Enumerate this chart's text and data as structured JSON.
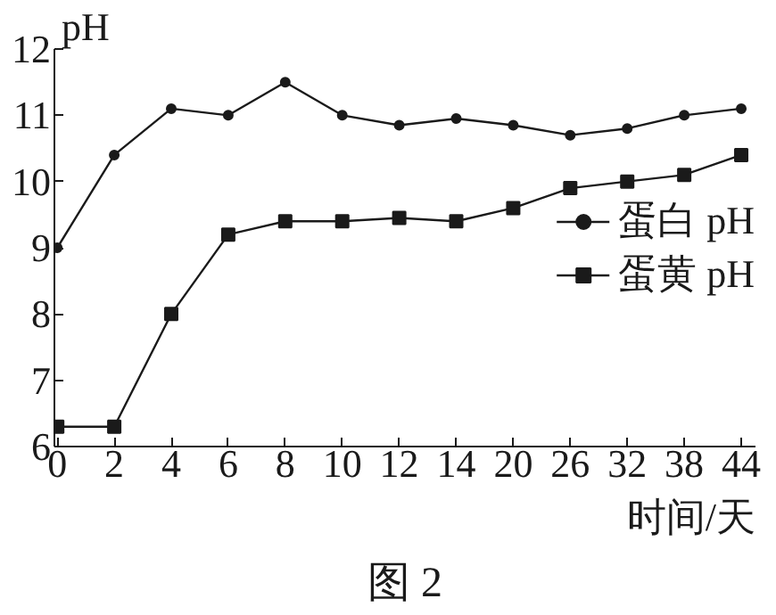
{
  "chart_data": {
    "type": "line",
    "categories": [
      "0",
      "2",
      "4",
      "6",
      "8",
      "10",
      "12",
      "14",
      "20",
      "26",
      "32",
      "38",
      "44"
    ],
    "ylabel": "pH",
    "xlabel": "时间/天",
    "ylim": [
      6,
      12
    ],
    "yticks": [
      6,
      7,
      8,
      9,
      10,
      11,
      12
    ],
    "legend": "right",
    "grid": false,
    "annotations": [
      "图 2"
    ],
    "series": [
      {
        "name": "蛋白 pH",
        "color": "#1a1a1a",
        "marker": "circle",
        "values": [
          9.0,
          10.4,
          11.1,
          11.0,
          11.5,
          11.0,
          10.85,
          10.95,
          10.85,
          10.7,
          10.8,
          11.0,
          11.1
        ]
      },
      {
        "name": "蛋黄 pH",
        "color": "#1a1a1a",
        "marker": "square",
        "values": [
          6.3,
          6.3,
          8.0,
          9.2,
          9.4,
          9.4,
          9.45,
          9.4,
          9.6,
          9.9,
          10.0,
          10.1,
          10.4
        ]
      }
    ]
  }
}
